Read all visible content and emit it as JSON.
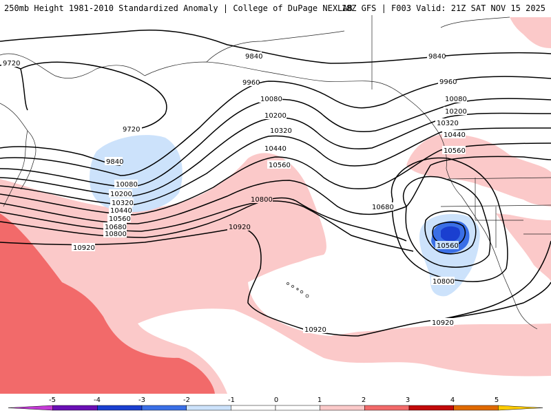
{
  "header": {
    "title_left": "250mb Height 1981-2010 Standardized Anomaly | College of DuPage NEXLAB",
    "title_right": "18Z GFS | F003 Valid: 21Z SAT NOV 15 2025"
  },
  "colors": {
    "strong_pos": "#f26a6a",
    "pos": "#fbc9c9",
    "weak_neg": "#cce2fb",
    "neg": "#3a6fe6",
    "deep_neg": "#1a3fd0",
    "contour": "#000000",
    "land_outline": "#222222"
  },
  "contour_labels": [
    "9720",
    "9720",
    "9840",
    "9840",
    "9840",
    "9960",
    "9960",
    "10080",
    "10080",
    "10080",
    "10200",
    "10200",
    "10200",
    "10320",
    "10320",
    "10320",
    "10440",
    "10440",
    "10440",
    "10560",
    "10560",
    "10560",
    "10560",
    "10680",
    "10680",
    "10800",
    "10800",
    "10800",
    "10920",
    "10920",
    "10920",
    "10920"
  ],
  "colorbar": {
    "ticks": [
      "-5",
      "-4",
      "-3",
      "-2",
      "-1",
      "0",
      "1",
      "2",
      "3",
      "4",
      "5"
    ],
    "colors": [
      "#c43ad6",
      "#6a0fb5",
      "#1a3fd0",
      "#3a6fe6",
      "#cce2fb",
      "#ffffff",
      "#ffffff",
      "#fbc9c9",
      "#f26a6a",
      "#c20a0a",
      "#e06a00",
      "#ffcc00"
    ]
  }
}
